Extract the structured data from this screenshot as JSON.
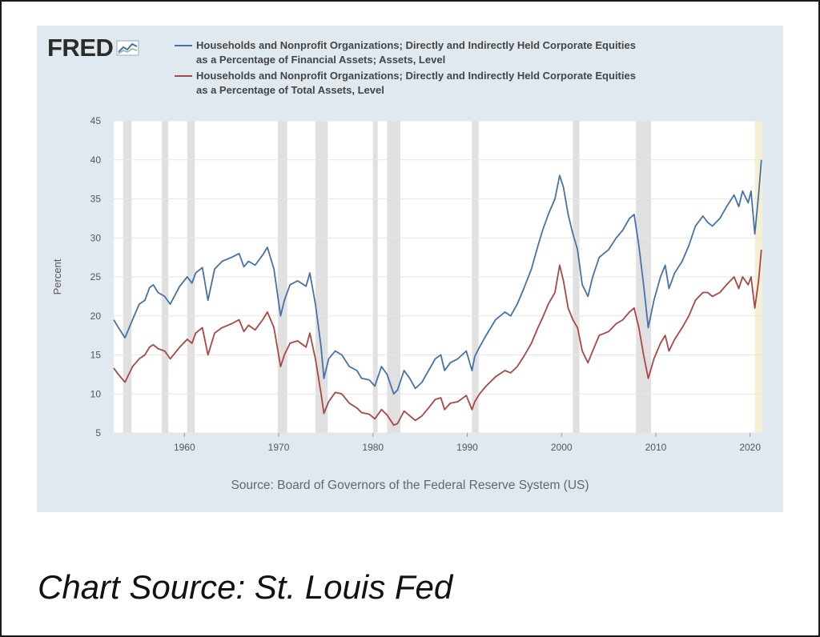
{
  "header": {
    "logo_text": "FRED",
    "logo_icon": "line-graph-icon"
  },
  "legend": {
    "series1_line1": "Households and Nonprofit Organizations; Directly and Indirectly Held Corporate Equities",
    "series1_line2": "as a Percentage of Financial Assets; Assets, Level",
    "series2_line1": "Households and Nonprofit Organizations; Directly and Indirectly Held Corporate Equities",
    "series2_line2": "as a Percentage of Total Assets, Level"
  },
  "source_note": "Source: Board of Governors of the Federal Reserve System (US)",
  "caption": "Chart Source: St. Louis Fed",
  "colors": {
    "series1": "#4572a7",
    "series2": "#aa4643",
    "panel_bg": "#e1e9f0",
    "plot_bg": "#ffffff",
    "recession": "#e0e0e0",
    "highlight": "#f5f0d4"
  },
  "chart_data": {
    "type": "line",
    "title": "",
    "xlabel": "",
    "ylabel": "Percent",
    "xlim": [
      1952.5,
      2021.3
    ],
    "ylim": [
      5,
      45
    ],
    "yticks": [
      5,
      10,
      15,
      20,
      25,
      30,
      35,
      40,
      45
    ],
    "xticks": [
      1960,
      1970,
      1980,
      1990,
      2000,
      2010,
      2020
    ],
    "xtick_labels": [
      "1960",
      "1970",
      "1980",
      "1990",
      "2000",
      "2010",
      "2020"
    ],
    "recessions": [
      [
        1953.5,
        1954.4
      ],
      [
        1957.6,
        1958.3
      ],
      [
        1960.3,
        1961.1
      ],
      [
        1969.9,
        1970.9
      ],
      [
        1973.9,
        1975.2
      ],
      [
        1980.0,
        1980.5
      ],
      [
        1981.5,
        1982.9
      ],
      [
        1990.5,
        1991.2
      ],
      [
        2001.2,
        2001.9
      ],
      [
        2007.9,
        2009.5
      ]
    ],
    "highlight_region": [
      2020.5,
      2021.3
    ],
    "series": [
      {
        "name": "Households and Nonprofit Organizations; Directly and Indirectly Held Corporate Equities as a Percentage of Financial Assets; Assets, Level",
        "color": "#4572a7",
        "x": [
          1952.5,
          1953.0,
          1953.7,
          1954.5,
          1955.2,
          1955.8,
          1956.3,
          1956.7,
          1957.2,
          1957.9,
          1958.5,
          1959.5,
          1960.3,
          1960.8,
          1961.2,
          1961.9,
          1962.5,
          1963.2,
          1964.0,
          1965.0,
          1965.8,
          1966.3,
          1966.8,
          1967.5,
          1968.3,
          1968.8,
          1969.5,
          1970.2,
          1970.6,
          1971.2,
          1972.0,
          1972.9,
          1973.3,
          1973.9,
          1974.5,
          1974.8,
          1975.3,
          1976.0,
          1976.7,
          1977.5,
          1978.3,
          1978.8,
          1979.6,
          1980.2,
          1980.9,
          1981.5,
          1982.2,
          1982.6,
          1983.3,
          1983.9,
          1984.5,
          1985.2,
          1985.9,
          1986.6,
          1987.2,
          1987.6,
          1988.2,
          1989.0,
          1989.9,
          1990.5,
          1990.8,
          1991.3,
          1992.0,
          1993.0,
          1994.0,
          1994.6,
          1995.3,
          1996.0,
          1996.8,
          1997.5,
          1998.0,
          1998.6,
          1999.3,
          1999.8,
          2000.2,
          2000.7,
          2001.2,
          2001.7,
          2002.2,
          2002.8,
          2003.3,
          2004.0,
          2005.0,
          2005.8,
          2006.5,
          2007.2,
          2007.7,
          2008.2,
          2008.7,
          2009.2,
          2009.8,
          2010.5,
          2011.0,
          2011.4,
          2012.0,
          2012.8,
          2013.5,
          2014.2,
          2015.0,
          2015.5,
          2016.0,
          2016.8,
          2017.5,
          2018.3,
          2018.8,
          2019.2,
          2019.8,
          2020.1,
          2020.5,
          2020.9,
          2021.2
        ],
        "values": [
          19.5,
          18.5,
          17.2,
          19.5,
          21.5,
          22.0,
          23.6,
          24.0,
          23.0,
          22.5,
          21.5,
          23.8,
          25.0,
          24.2,
          25.5,
          26.2,
          22.0,
          26.0,
          27.0,
          27.5,
          28.0,
          26.3,
          27.0,
          26.5,
          27.8,
          28.8,
          26.0,
          20.0,
          22.0,
          24.0,
          24.5,
          23.8,
          25.5,
          21.5,
          16.0,
          12.0,
          14.5,
          15.5,
          15.0,
          13.5,
          13.0,
          12.0,
          11.8,
          11.0,
          13.5,
          12.5,
          10.0,
          10.5,
          13.0,
          12.0,
          10.7,
          11.5,
          13.0,
          14.5,
          15.0,
          13.0,
          14.0,
          14.5,
          15.5,
          13.0,
          14.8,
          16.0,
          17.5,
          19.5,
          20.5,
          20.0,
          21.5,
          23.5,
          26.0,
          29.0,
          31.0,
          33.0,
          35.0,
          38.0,
          36.5,
          33.0,
          30.5,
          28.5,
          24.0,
          22.5,
          25.0,
          27.5,
          28.5,
          30.0,
          31.0,
          32.5,
          33.0,
          29.0,
          24.0,
          18.5,
          22.0,
          25.0,
          26.5,
          23.5,
          25.5,
          27.0,
          29.0,
          31.5,
          32.8,
          32.0,
          31.5,
          32.5,
          34.0,
          35.5,
          34.0,
          36.0,
          34.5,
          36.0,
          30.5,
          35.5,
          40.0
        ]
      },
      {
        "name": "Households and Nonprofit Organizations; Directly and Indirectly Held Corporate Equities as a Percentage of Total Assets, Level",
        "color": "#aa4643",
        "x": [
          1952.5,
          1953.0,
          1953.7,
          1954.5,
          1955.2,
          1955.8,
          1956.3,
          1956.7,
          1957.2,
          1957.9,
          1958.5,
          1959.5,
          1960.3,
          1960.8,
          1961.2,
          1961.9,
          1962.5,
          1963.2,
          1964.0,
          1965.0,
          1965.8,
          1966.3,
          1966.8,
          1967.5,
          1968.3,
          1968.8,
          1969.5,
          1970.2,
          1970.6,
          1971.2,
          1972.0,
          1972.9,
          1973.3,
          1973.9,
          1974.5,
          1974.8,
          1975.3,
          1976.0,
          1976.7,
          1977.5,
          1978.3,
          1978.8,
          1979.6,
          1980.2,
          1980.9,
          1981.5,
          1982.2,
          1982.6,
          1983.3,
          1983.9,
          1984.5,
          1985.2,
          1985.9,
          1986.6,
          1987.2,
          1987.6,
          1988.2,
          1989.0,
          1989.9,
          1990.5,
          1990.8,
          1991.3,
          1992.0,
          1993.0,
          1994.0,
          1994.6,
          1995.3,
          1996.0,
          1996.8,
          1997.5,
          1998.0,
          1998.6,
          1999.3,
          1999.8,
          2000.2,
          2000.7,
          2001.2,
          2001.7,
          2002.2,
          2002.8,
          2003.3,
          2004.0,
          2005.0,
          2005.8,
          2006.5,
          2007.2,
          2007.7,
          2008.2,
          2008.7,
          2009.2,
          2009.8,
          2010.5,
          2011.0,
          2011.4,
          2012.0,
          2012.8,
          2013.5,
          2014.2,
          2015.0,
          2015.5,
          2016.0,
          2016.8,
          2017.5,
          2018.3,
          2018.8,
          2019.2,
          2019.8,
          2020.1,
          2020.5,
          2020.9,
          2021.2
        ],
        "values": [
          13.3,
          12.5,
          11.5,
          13.5,
          14.5,
          15.0,
          16.0,
          16.3,
          15.8,
          15.5,
          14.5,
          16.0,
          17.0,
          16.5,
          17.8,
          18.5,
          15.0,
          17.8,
          18.5,
          19.0,
          19.5,
          18.0,
          18.8,
          18.2,
          19.5,
          20.5,
          18.5,
          13.5,
          15.0,
          16.5,
          16.8,
          16.0,
          17.8,
          14.5,
          10.0,
          7.5,
          9.0,
          10.2,
          10.0,
          8.8,
          8.2,
          7.6,
          7.4,
          6.8,
          8.0,
          7.3,
          6.0,
          6.2,
          7.8,
          7.2,
          6.6,
          7.2,
          8.2,
          9.3,
          9.5,
          8.0,
          8.8,
          9.0,
          9.8,
          8.0,
          9.0,
          10.0,
          11.0,
          12.2,
          13.0,
          12.7,
          13.5,
          14.8,
          16.5,
          18.5,
          19.8,
          21.5,
          23.0,
          26.5,
          24.5,
          21.0,
          19.5,
          18.5,
          15.5,
          14.0,
          15.5,
          17.5,
          18.0,
          19.0,
          19.5,
          20.5,
          21.0,
          18.5,
          15.0,
          12.0,
          14.5,
          16.5,
          17.5,
          15.5,
          17.0,
          18.5,
          20.0,
          22.0,
          23.0,
          23.0,
          22.5,
          23.0,
          24.0,
          25.0,
          23.5,
          25.0,
          24.0,
          25.0,
          21.0,
          24.5,
          28.5
        ]
      }
    ]
  }
}
